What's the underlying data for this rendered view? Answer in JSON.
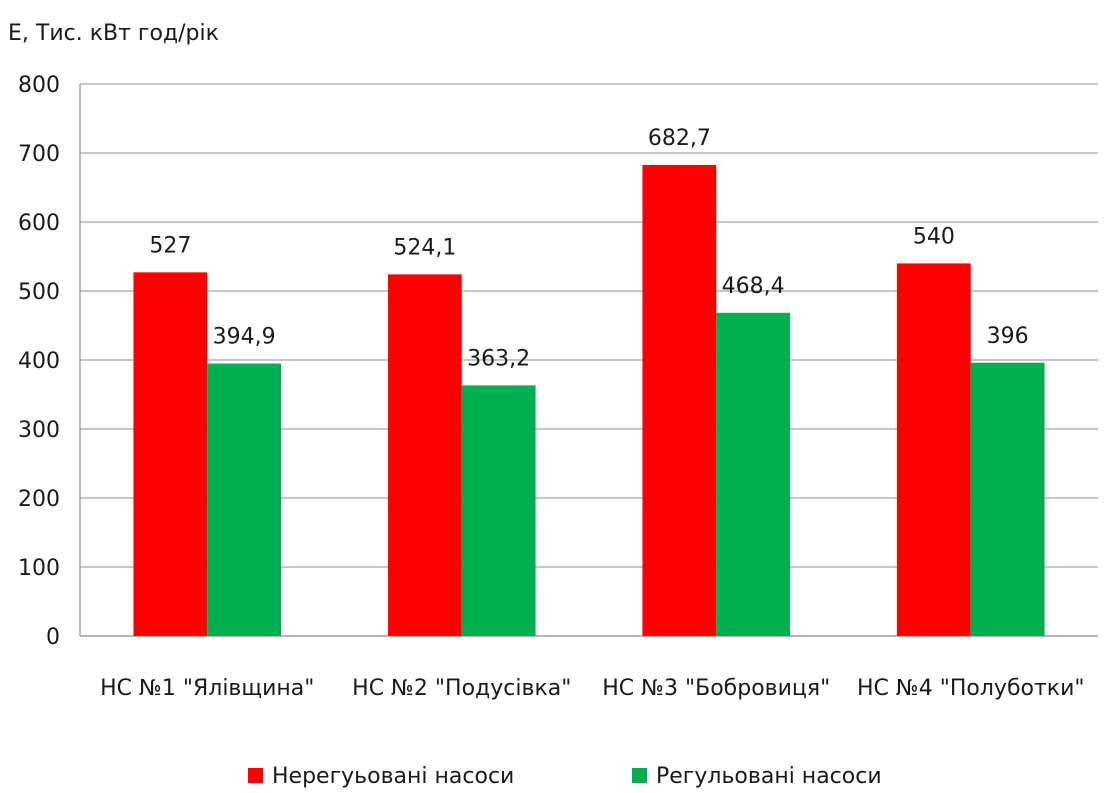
{
  "chart_data": {
    "type": "bar",
    "ylabel": "Е, Тис. кВт год/рік",
    "xlabel": "",
    "ylim": [
      0,
      800
    ],
    "yticks": [
      0,
      100,
      200,
      300,
      400,
      500,
      600,
      700,
      800
    ],
    "grid": true,
    "legend_position": "bottom",
    "categories": [
      "НС №1 \"Ялівщина\"",
      "НС №2 \"Подусівка\"",
      "НС №3 \"Бобровиця\"",
      "НС №4 \"Полуботки\""
    ],
    "series": [
      {
        "name": "Нерегуьовані насоси",
        "color": "#ff0000",
        "values": [
          527,
          524.1,
          682.7,
          540
        ],
        "labels": [
          "527",
          "524,1",
          "682,7",
          "540"
        ]
      },
      {
        "name": "Регульовані насоси",
        "color": "#00b050",
        "values": [
          394.9,
          363.2,
          468.4,
          396
        ],
        "labels": [
          "394,9",
          "363,2",
          "468,4",
          "396"
        ]
      }
    ]
  }
}
